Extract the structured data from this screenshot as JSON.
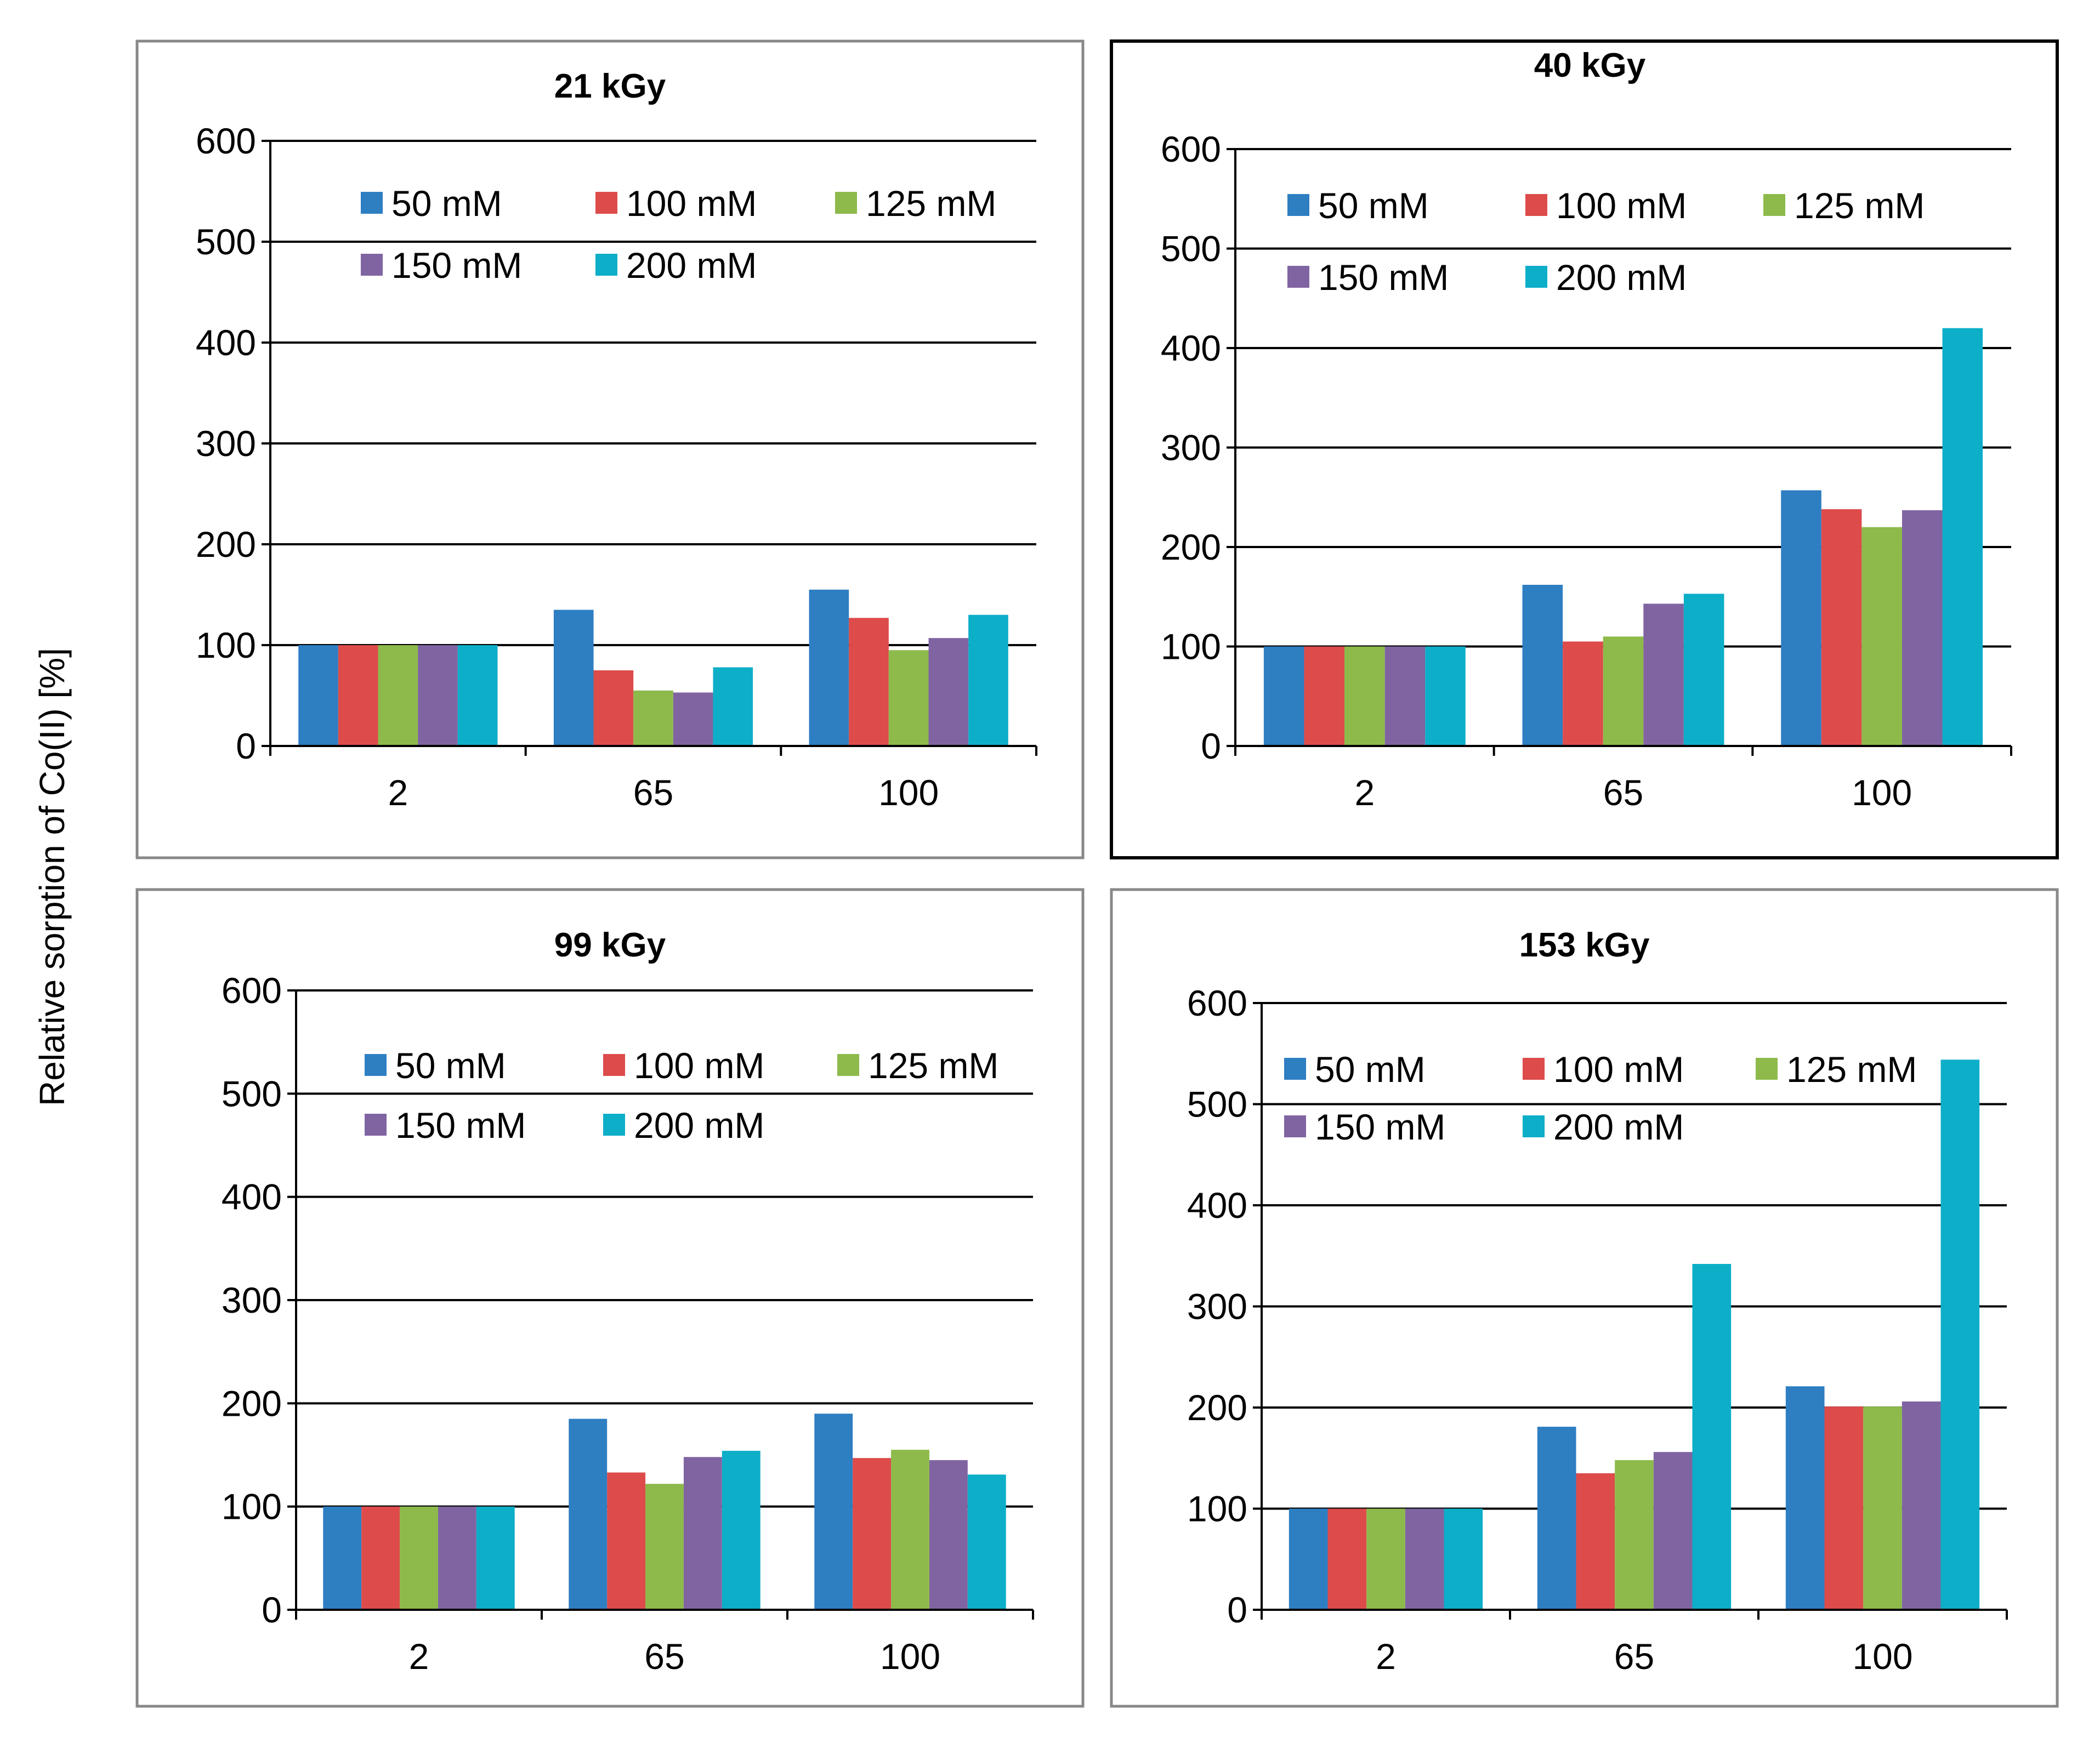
{
  "y_axis_label": "Relative sorption of Co(II) [%]",
  "chart_data": [
    {
      "type": "bar",
      "title": "21 kGy",
      "categories": [
        "2",
        "65",
        "100"
      ],
      "ylim": [
        0,
        600
      ],
      "yticks": [
        0,
        100,
        200,
        300,
        400,
        500,
        600
      ],
      "series": [
        {
          "name": "50 mM",
          "color": "#2E7EC2",
          "values": [
            100,
            135,
            155
          ]
        },
        {
          "name": "100 mM",
          "color": "#DD4B4B",
          "values": [
            100,
            75,
            127
          ]
        },
        {
          "name": "125 mM",
          "color": "#8DBA4B",
          "values": [
            100,
            55,
            95
          ]
        },
        {
          "name": "150 mM",
          "color": "#8064A2",
          "values": [
            100,
            53,
            107
          ]
        },
        {
          "name": "200 mM",
          "color": "#0DAEC8",
          "values": [
            100,
            78,
            130
          ]
        }
      ]
    },
    {
      "type": "bar",
      "title": "40 kGy",
      "categories": [
        "2",
        "65",
        "100"
      ],
      "ylim": [
        0,
        600
      ],
      "yticks": [
        0,
        100,
        200,
        300,
        400,
        500,
        600
      ],
      "series": [
        {
          "name": "50 mM",
          "color": "#2E7EC2",
          "values": [
            100,
            162,
            257
          ]
        },
        {
          "name": "100 mM",
          "color": "#DD4B4B",
          "values": [
            100,
            105,
            238
          ]
        },
        {
          "name": "125 mM",
          "color": "#8DBA4B",
          "values": [
            100,
            110,
            220
          ]
        },
        {
          "name": "150 mM",
          "color": "#8064A2",
          "values": [
            100,
            143,
            237
          ]
        },
        {
          "name": "200 mM",
          "color": "#0DAEC8",
          "values": [
            100,
            153,
            420
          ]
        }
      ]
    },
    {
      "type": "bar",
      "title": "99 kGy",
      "categories": [
        "2",
        "65",
        "100"
      ],
      "ylim": [
        0,
        600
      ],
      "yticks": [
        0,
        100,
        200,
        300,
        400,
        500,
        600
      ],
      "series": [
        {
          "name": "50 mM",
          "color": "#2E7EC2",
          "values": [
            100,
            185,
            190
          ]
        },
        {
          "name": "100 mM",
          "color": "#DD4B4B",
          "values": [
            100,
            133,
            147
          ]
        },
        {
          "name": "125 mM",
          "color": "#8DBA4B",
          "values": [
            100,
            122,
            155
          ]
        },
        {
          "name": "150 mM",
          "color": "#8064A2",
          "values": [
            100,
            148,
            145
          ]
        },
        {
          "name": "200 mM",
          "color": "#0DAEC8",
          "values": [
            100,
            154,
            131
          ]
        }
      ]
    },
    {
      "type": "bar",
      "title": "153 kGy",
      "categories": [
        "2",
        "65",
        "100"
      ],
      "ylim": [
        0,
        600
      ],
      "yticks": [
        0,
        100,
        200,
        300,
        400,
        500,
        600
      ],
      "series": [
        {
          "name": "50 mM",
          "color": "#2E7EC2",
          "values": [
            100,
            181,
            221
          ]
        },
        {
          "name": "100 mM",
          "color": "#DD4B4B",
          "values": [
            100,
            135,
            201
          ]
        },
        {
          "name": "125 mM",
          "color": "#8DBA4B",
          "values": [
            100,
            148,
            201
          ]
        },
        {
          "name": "150 mM",
          "color": "#8064A2",
          "values": [
            100,
            156,
            206
          ]
        },
        {
          "name": "200 mM",
          "color": "#0DAEC8",
          "values": [
            100,
            342,
            544
          ]
        }
      ]
    }
  ]
}
